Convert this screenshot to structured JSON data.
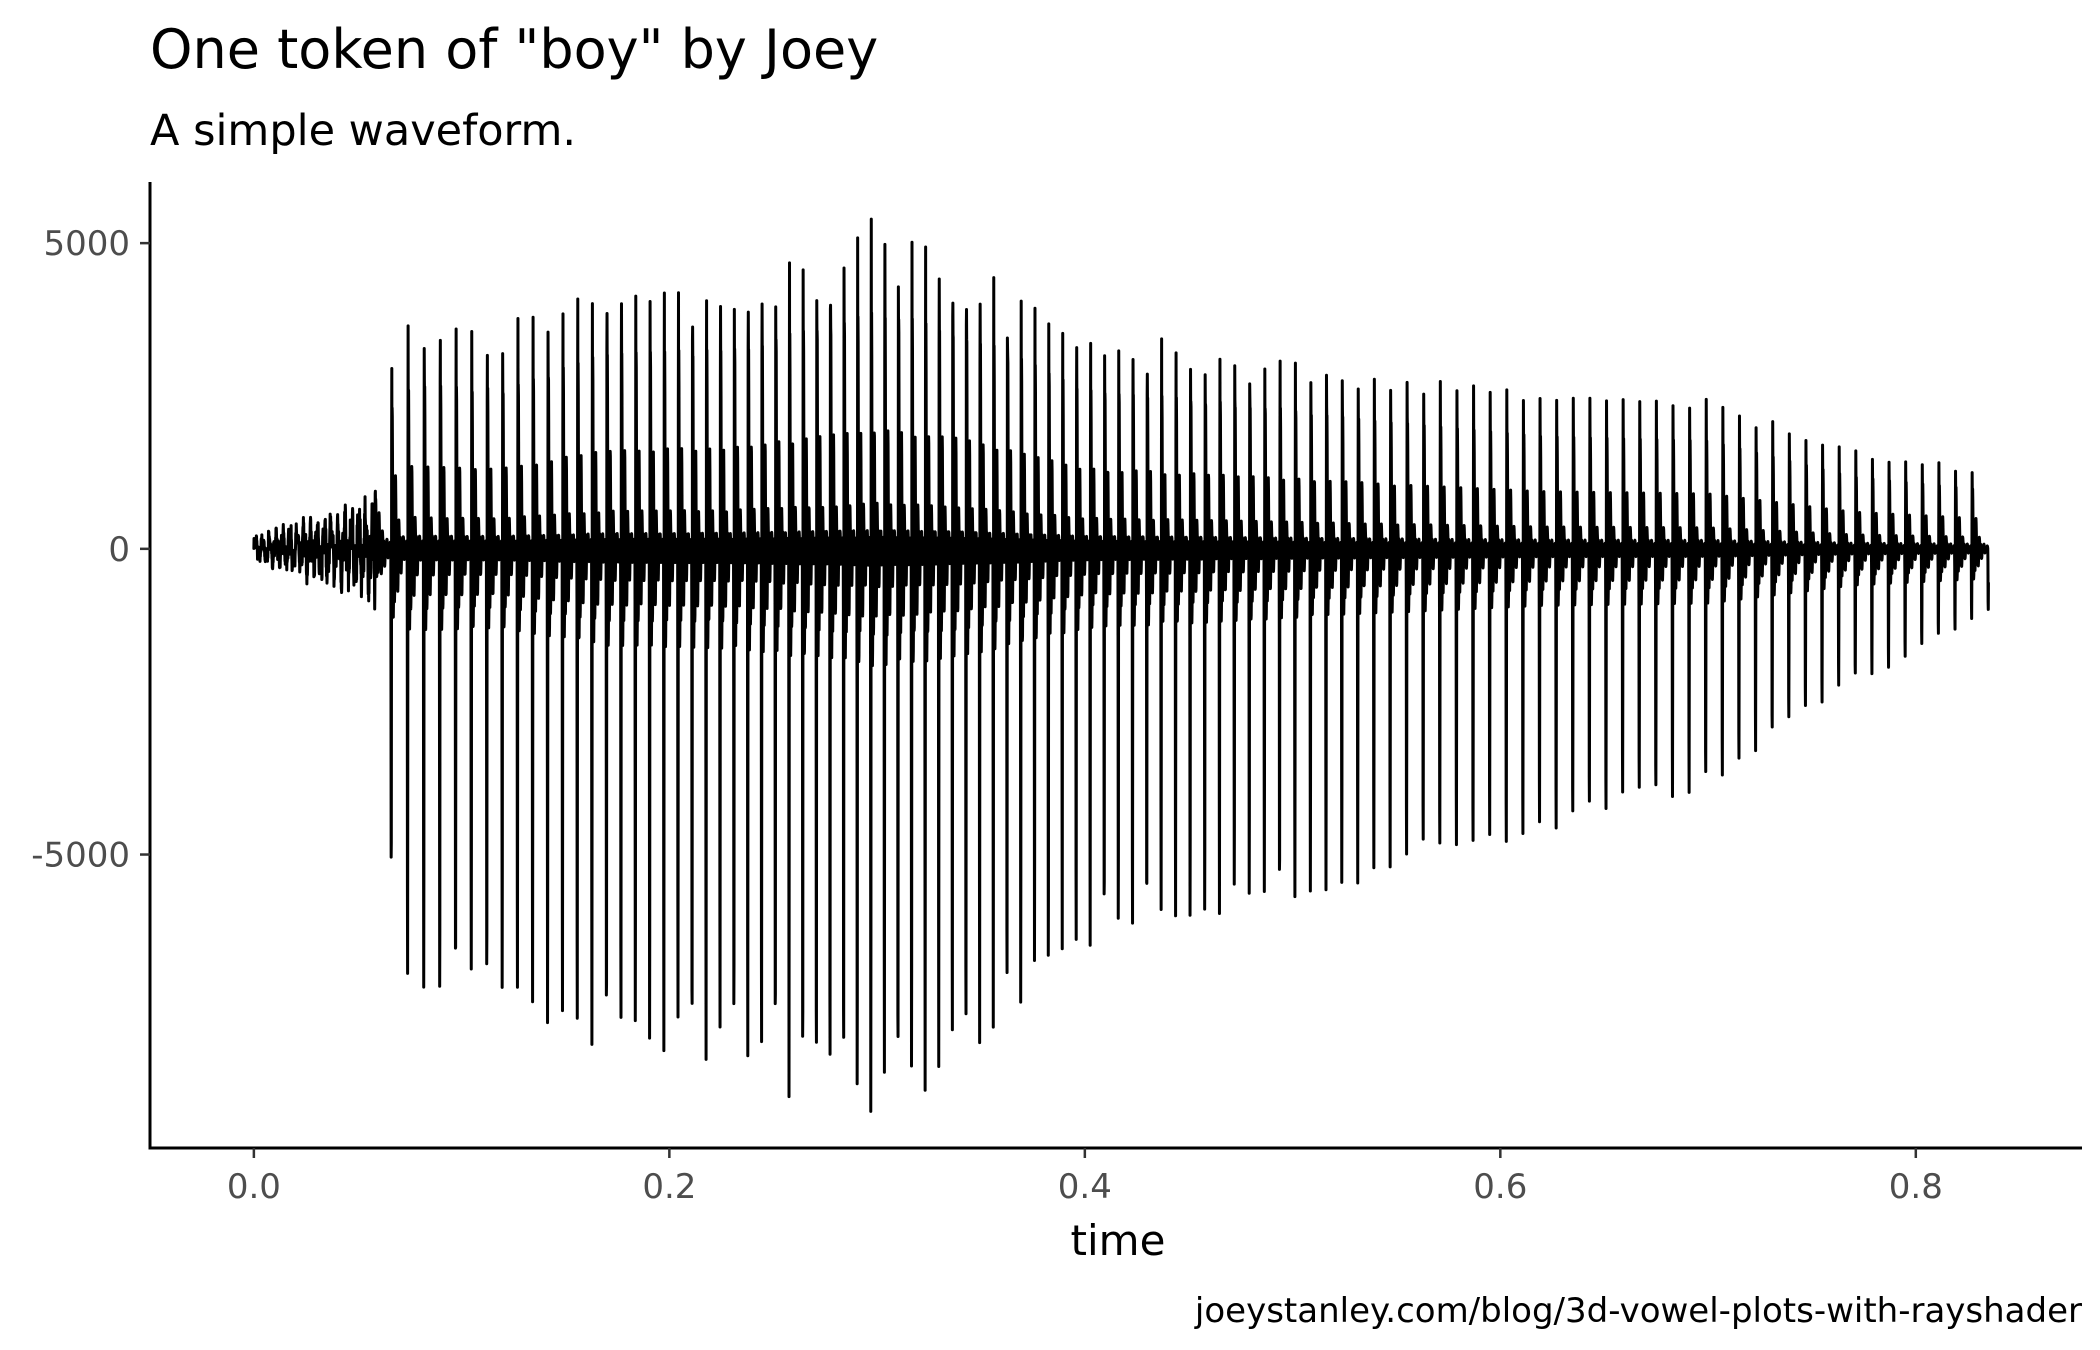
{
  "chart_data": {
    "type": "line",
    "title": "One token of \"boy\" by Joey",
    "subtitle": "A simple waveform.",
    "xlabel": "time",
    "ylabel": "",
    "caption": "joeystanley.com/blog/3d-vowel-plots-with-rayshader",
    "xlim": [
      -0.05,
      0.88
    ],
    "ylim": [
      -9800,
      6000
    ],
    "xticks": [
      0.0,
      0.2,
      0.4,
      0.6,
      0.8
    ],
    "xtick_labels": [
      "0.0",
      "0.2",
      "0.4",
      "0.6",
      "0.8"
    ],
    "yticks": [
      5000,
      0,
      -5000
    ],
    "ytick_labels": [
      "5000",
      "0",
      "-5000"
    ],
    "grid": false,
    "legend": "none",
    "line_color": "#000000",
    "series": [
      {
        "duration": 0.835,
        "onset_time": 0.058,
        "envelope": [
          [
            0.0,
            250,
            400
          ],
          [
            0.058,
            900,
            900
          ],
          [
            0.065,
            3000,
            5000
          ],
          [
            0.075,
            3600,
            7200
          ],
          [
            0.12,
            3500,
            7200
          ],
          [
            0.17,
            4300,
            8000
          ],
          [
            0.23,
            4400,
            8200
          ],
          [
            0.3,
            5200,
            9200
          ],
          [
            0.34,
            4800,
            8200
          ],
          [
            0.4,
            3500,
            6300
          ],
          [
            0.47,
            3200,
            5800
          ],
          [
            0.55,
            2800,
            5100
          ],
          [
            0.62,
            2500,
            4600
          ],
          [
            0.7,
            2400,
            3800
          ],
          [
            0.77,
            1600,
            2200
          ],
          [
            0.835,
            1300,
            1000
          ]
        ]
      }
    ]
  }
}
